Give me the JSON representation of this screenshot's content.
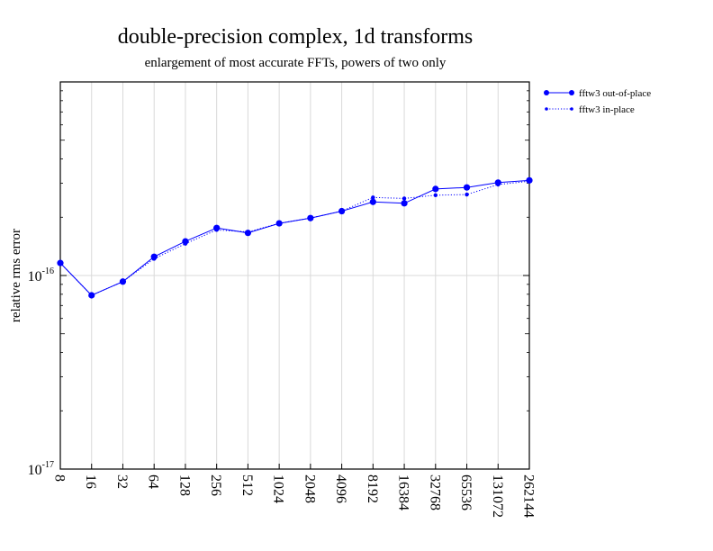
{
  "chart_data": {
    "type": "line",
    "title": "double-precision complex, 1d transforms",
    "subtitle": "enlargement of most accurate FFTs, powers of two only",
    "xlabel": "",
    "ylabel": "relative rms error",
    "y_scale": "log",
    "ylim": [
      1e-17,
      1e-15
    ],
    "y_ticks": [
      {
        "mantissa": "10",
        "exponent": "-16",
        "value": 1e-16
      },
      {
        "mantissa": "10",
        "exponent": "-17",
        "value": 1e-17
      }
    ],
    "categories": [
      "8",
      "16",
      "32",
      "64",
      "128",
      "256",
      "512",
      "1024",
      "2048",
      "4096",
      "8192",
      "16384",
      "32768",
      "65536",
      "131072",
      "262144"
    ],
    "grid": true,
    "legend_position": "right, outside top",
    "series": [
      {
        "name": "fftw3 out-of-place",
        "color": "#0000ff",
        "line_style": "solid",
        "values": [
          1.16e-16,
          7.9e-17,
          9.3e-17,
          1.25e-16,
          1.5e-16,
          1.76e-16,
          1.66e-16,
          1.86e-16,
          1.98e-16,
          2.15e-16,
          2.4e-16,
          2.36e-16,
          2.8e-16,
          2.85e-16,
          3.02e-16,
          3.1e-16
        ]
      },
      {
        "name": "fftw3 in-place",
        "color": "#0000ff",
        "line_style": "dotted",
        "values": [
          1.16e-16,
          7.9e-17,
          9.3e-17,
          1.22e-16,
          1.46e-16,
          1.72e-16,
          1.68e-16,
          1.86e-16,
          1.98e-16,
          2.15e-16,
          2.53e-16,
          2.5e-16,
          2.6e-16,
          2.62e-16,
          2.95e-16,
          3.07e-16
        ]
      }
    ]
  }
}
